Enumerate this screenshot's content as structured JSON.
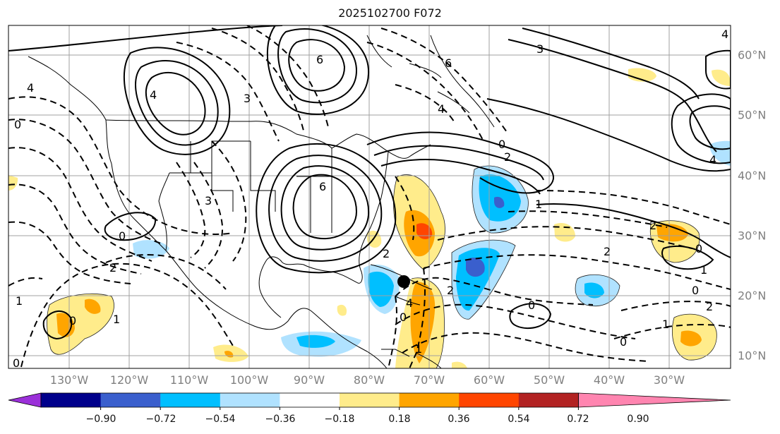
{
  "title": "2025102700 F072",
  "longitude_labels": [
    "130°W",
    "120°W",
    "110°W",
    "100°W",
    "90°W",
    "80°W",
    "70°W",
    "60°W",
    "50°W",
    "40°W",
    "30°W"
  ],
  "latitude_labels": [
    "60°N",
    "50°N",
    "40°N",
    "30°N",
    "20°N",
    "10°N"
  ],
  "colorbar": {
    "colors": [
      "#9b30d9",
      "#00008b",
      "#3a5fcd",
      "#00bfff",
      "#b0e2ff",
      "#ffffff",
      "#ffec8b",
      "#ffa500",
      "#ff4500",
      "#b22222",
      "#ff85b0"
    ],
    "tick_labels": [
      "−0.90",
      "−0.72",
      "−0.54",
      "−0.36",
      "−0.18",
      "0.18",
      "0.36",
      "0.54",
      "0.72",
      "0.90"
    ]
  },
  "contour_labels": [
    "4",
    "3",
    "6",
    "6",
    "4",
    "4",
    "4",
    "3",
    "0",
    "0",
    "3",
    "4",
    "6",
    "0",
    "1",
    "2",
    "2",
    "1",
    "0",
    "0",
    "1",
    "2",
    "0",
    "2",
    "1",
    "0",
    "1",
    "2",
    "0",
    "0",
    "1",
    "0",
    "2",
    "4",
    "2"
  ],
  "storm_marker": "tropical-cyclone-position"
}
